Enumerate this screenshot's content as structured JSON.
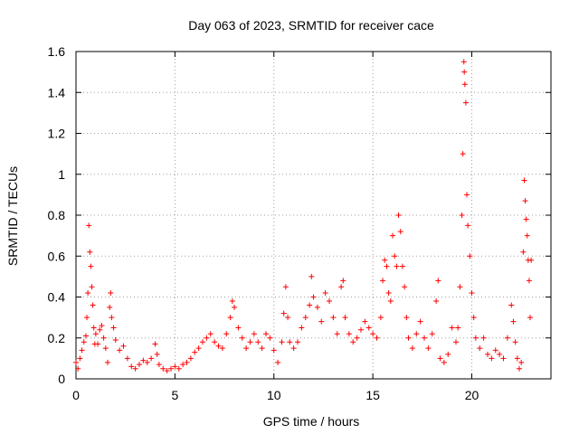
{
  "chart_data": {
    "type": "scatter",
    "title": "Day 063 of 2023, SRMTID for receiver cace",
    "xlabel": "GPS time / hours",
    "ylabel": "SRMTID / TECUs",
    "xlim": [
      0,
      24
    ],
    "ylim": [
      0,
      1.6
    ],
    "xticks": [
      0,
      5,
      10,
      15,
      20
    ],
    "xtick_labels": [
      "0",
      "5",
      "10",
      "15",
      "20"
    ],
    "yticks": [
      0,
      0.2,
      0.4,
      0.6,
      0.8,
      1.0,
      1.2,
      1.4,
      1.6
    ],
    "ytick_labels": [
      "0",
      "0.2",
      "0.4",
      "0.6",
      "0.8",
      "1",
      "1.2",
      "1.4",
      "1.6"
    ],
    "grid": true,
    "marker": "+",
    "color": "#ff0000",
    "series": [
      {
        "name": "SRMTID",
        "points": [
          [
            0.0,
            0.08
          ],
          [
            0.1,
            0.05
          ],
          [
            0.2,
            0.1
          ],
          [
            0.3,
            0.14
          ],
          [
            0.4,
            0.18
          ],
          [
            0.5,
            0.21
          ],
          [
            0.55,
            0.3
          ],
          [
            0.6,
            0.42
          ],
          [
            0.65,
            0.75
          ],
          [
            0.7,
            0.62
          ],
          [
            0.75,
            0.55
          ],
          [
            0.8,
            0.45
          ],
          [
            0.85,
            0.36
          ],
          [
            0.9,
            0.25
          ],
          [
            0.95,
            0.17
          ],
          [
            1.0,
            0.22
          ],
          [
            1.1,
            0.17
          ],
          [
            1.2,
            0.24
          ],
          [
            1.3,
            0.26
          ],
          [
            1.4,
            0.2
          ],
          [
            1.5,
            0.15
          ],
          [
            1.6,
            0.08
          ],
          [
            1.7,
            0.35
          ],
          [
            1.75,
            0.42
          ],
          [
            1.8,
            0.3
          ],
          [
            1.9,
            0.25
          ],
          [
            2.0,
            0.19
          ],
          [
            2.2,
            0.14
          ],
          [
            2.4,
            0.16
          ],
          [
            2.6,
            0.1
          ],
          [
            2.8,
            0.06
          ],
          [
            3.0,
            0.05
          ],
          [
            3.2,
            0.07
          ],
          [
            3.4,
            0.09
          ],
          [
            3.6,
            0.08
          ],
          [
            3.8,
            0.1
          ],
          [
            4.0,
            0.17
          ],
          [
            4.1,
            0.12
          ],
          [
            4.2,
            0.07
          ],
          [
            4.4,
            0.05
          ],
          [
            4.6,
            0.04
          ],
          [
            4.8,
            0.05
          ],
          [
            5.0,
            0.06
          ],
          [
            5.2,
            0.05
          ],
          [
            5.4,
            0.07
          ],
          [
            5.6,
            0.08
          ],
          [
            5.8,
            0.1
          ],
          [
            6.0,
            0.13
          ],
          [
            6.2,
            0.15
          ],
          [
            6.4,
            0.18
          ],
          [
            6.6,
            0.2
          ],
          [
            6.8,
            0.22
          ],
          [
            7.0,
            0.18
          ],
          [
            7.2,
            0.16
          ],
          [
            7.4,
            0.15
          ],
          [
            7.6,
            0.22
          ],
          [
            7.8,
            0.3
          ],
          [
            7.9,
            0.38
          ],
          [
            8.0,
            0.35
          ],
          [
            8.2,
            0.25
          ],
          [
            8.4,
            0.2
          ],
          [
            8.6,
            0.15
          ],
          [
            8.8,
            0.18
          ],
          [
            9.0,
            0.22
          ],
          [
            9.2,
            0.18
          ],
          [
            9.4,
            0.15
          ],
          [
            9.6,
            0.22
          ],
          [
            9.8,
            0.2
          ],
          [
            10.0,
            0.14
          ],
          [
            10.2,
            0.08
          ],
          [
            10.4,
            0.18
          ],
          [
            10.5,
            0.32
          ],
          [
            10.6,
            0.45
          ],
          [
            10.7,
            0.3
          ],
          [
            10.8,
            0.18
          ],
          [
            11.0,
            0.15
          ],
          [
            11.2,
            0.18
          ],
          [
            11.4,
            0.25
          ],
          [
            11.6,
            0.3
          ],
          [
            11.8,
            0.36
          ],
          [
            11.9,
            0.5
          ],
          [
            12.0,
            0.4
          ],
          [
            12.2,
            0.35
          ],
          [
            12.4,
            0.28
          ],
          [
            12.6,
            0.42
          ],
          [
            12.8,
            0.38
          ],
          [
            13.0,
            0.3
          ],
          [
            13.2,
            0.22
          ],
          [
            13.4,
            0.45
          ],
          [
            13.5,
            0.48
          ],
          [
            13.6,
            0.3
          ],
          [
            13.8,
            0.22
          ],
          [
            14.0,
            0.18
          ],
          [
            14.2,
            0.2
          ],
          [
            14.4,
            0.24
          ],
          [
            14.6,
            0.28
          ],
          [
            14.8,
            0.25
          ],
          [
            15.0,
            0.22
          ],
          [
            15.2,
            0.2
          ],
          [
            15.4,
            0.3
          ],
          [
            15.5,
            0.48
          ],
          [
            15.6,
            0.58
          ],
          [
            15.7,
            0.55
          ],
          [
            15.8,
            0.42
          ],
          [
            15.9,
            0.38
          ],
          [
            16.0,
            0.7
          ],
          [
            16.1,
            0.6
          ],
          [
            16.2,
            0.55
          ],
          [
            16.3,
            0.8
          ],
          [
            16.4,
            0.72
          ],
          [
            16.5,
            0.55
          ],
          [
            16.6,
            0.45
          ],
          [
            16.7,
            0.3
          ],
          [
            16.8,
            0.2
          ],
          [
            17.0,
            0.15
          ],
          [
            17.2,
            0.22
          ],
          [
            17.4,
            0.28
          ],
          [
            17.6,
            0.2
          ],
          [
            17.8,
            0.15
          ],
          [
            18.0,
            0.22
          ],
          [
            18.2,
            0.38
          ],
          [
            18.3,
            0.48
          ],
          [
            18.4,
            0.1
          ],
          [
            18.6,
            0.08
          ],
          [
            18.8,
            0.12
          ],
          [
            19.0,
            0.25
          ],
          [
            19.2,
            0.18
          ],
          [
            19.3,
            0.25
          ],
          [
            19.4,
            0.45
          ],
          [
            19.5,
            0.8
          ],
          [
            19.55,
            1.1
          ],
          [
            19.6,
            1.55
          ],
          [
            19.62,
            1.5
          ],
          [
            19.65,
            1.44
          ],
          [
            19.7,
            1.35
          ],
          [
            19.75,
            0.9
          ],
          [
            19.8,
            0.75
          ],
          [
            19.9,
            0.6
          ],
          [
            20.0,
            0.42
          ],
          [
            20.1,
            0.3
          ],
          [
            20.2,
            0.2
          ],
          [
            20.4,
            0.15
          ],
          [
            20.6,
            0.2
          ],
          [
            20.8,
            0.12
          ],
          [
            21.0,
            0.1
          ],
          [
            21.2,
            0.14
          ],
          [
            21.4,
            0.12
          ],
          [
            21.6,
            0.1
          ],
          [
            21.8,
            0.2
          ],
          [
            22.0,
            0.36
          ],
          [
            22.1,
            0.28
          ],
          [
            22.2,
            0.18
          ],
          [
            22.3,
            0.1
          ],
          [
            22.4,
            0.05
          ],
          [
            22.5,
            0.08
          ],
          [
            22.6,
            0.62
          ],
          [
            22.65,
            0.97
          ],
          [
            22.7,
            0.87
          ],
          [
            22.75,
            0.78
          ],
          [
            22.8,
            0.7
          ],
          [
            22.85,
            0.58
          ],
          [
            22.9,
            0.48
          ],
          [
            22.95,
            0.3
          ],
          [
            23.0,
            0.58
          ]
        ]
      }
    ]
  }
}
